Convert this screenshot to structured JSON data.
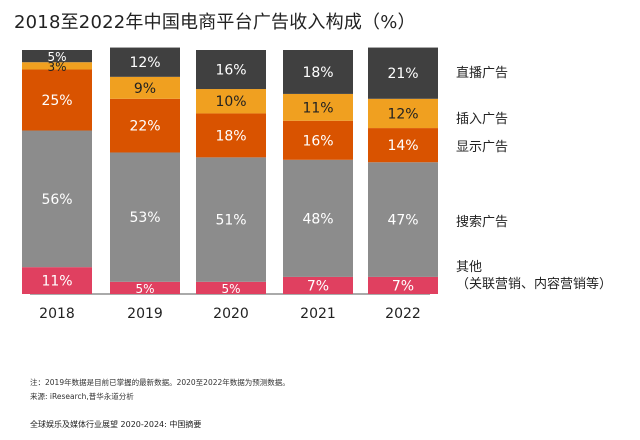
{
  "title": "2018至2022年中国电商平台广告收入构成（%）",
  "chart_data": {
    "type": "bar",
    "stacked": true,
    "title": "2018至2022年中国电商平台广告收入构成（%）",
    "unit": "%",
    "categories": [
      "2018",
      "2019",
      "2020",
      "2021",
      "2022"
    ],
    "series": [
      {
        "name": "其他（关联营销、内容营销等）",
        "color": "#E04060",
        "values": [
          11,
          5,
          5,
          7,
          7
        ]
      },
      {
        "name": "搜索广告",
        "color": "#8C8C8C",
        "values": [
          56,
          53,
          51,
          48,
          47
        ]
      },
      {
        "name": "显示广告",
        "color": "#D95300",
        "values": [
          25,
          22,
          18,
          16,
          14
        ]
      },
      {
        "name": "插入广告",
        "color": "#F0A020",
        "values": [
          3,
          9,
          10,
          11,
          12
        ]
      },
      {
        "name": "直播广告",
        "color": "#404040",
        "values": [
          5,
          12,
          16,
          18,
          21
        ]
      }
    ],
    "ylim": [
      0,
      100
    ]
  },
  "legend": {
    "live": "直播广告",
    "insert": "插入广告",
    "display": "显示广告",
    "search": "搜索广告",
    "other_line1": "其他",
    "other_line2": "（关联营销、内容营销等）"
  },
  "notes": {
    "note1": "注：2019年数据是目前已掌握的最新数据。2020至2022年数据为预测数据。",
    "note2": "来源: iResearch,普华永道分析"
  },
  "footer": "全球娱乐及媒体行业展望 2020-2024: 中国摘要"
}
